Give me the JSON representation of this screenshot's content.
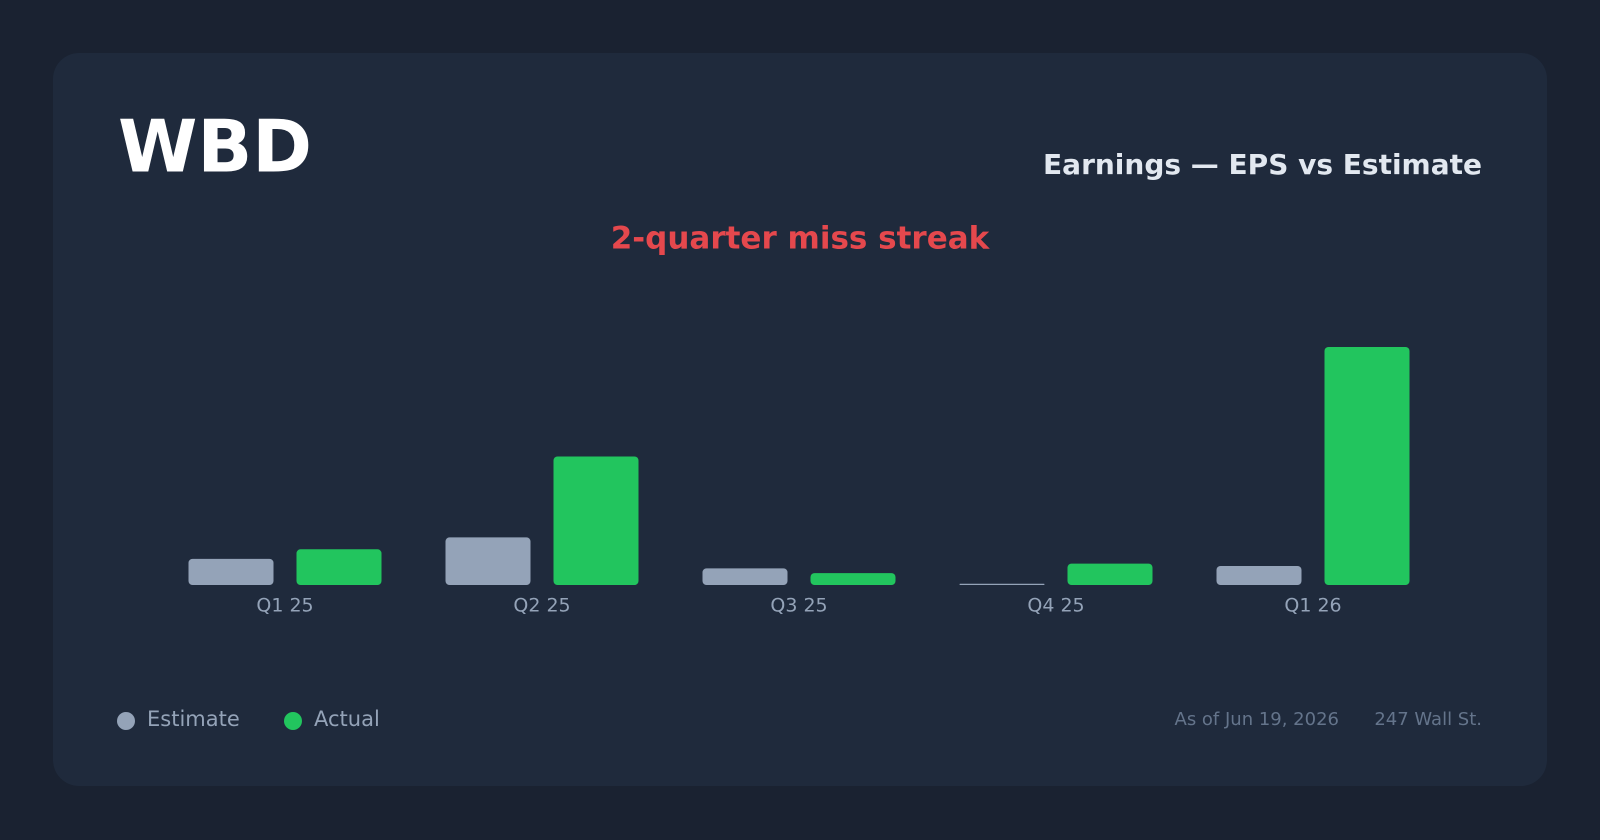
{
  "chart_data": {
    "type": "bar",
    "ticker": "WBD",
    "title": "Earnings — EPS vs Estimate",
    "annotation": "2-quarter miss streak",
    "categories": [
      "Q1 25",
      "Q2 25",
      "Q3 25",
      "Q4 25",
      "Q1 26"
    ],
    "series": [
      {
        "name": "Estimate",
        "color": "#94a3b8",
        "values": [
          0.11,
          0.2,
          0.07,
          0.005,
          0.08
        ]
      },
      {
        "name": "Actual",
        "color": "#22c55e",
        "values": [
          0.15,
          0.54,
          0.05,
          0.09,
          1.0
        ]
      }
    ],
    "footer": {
      "date": "As of Jun 19, 2026",
      "source": "247 Wall St."
    }
  }
}
